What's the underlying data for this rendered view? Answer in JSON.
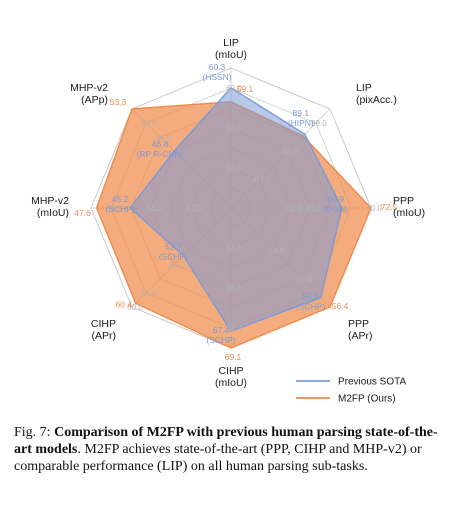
{
  "chart_data": {
    "type": "radar",
    "axes": [
      {
        "label": [
          "LIP",
          "(mIoU)"
        ],
        "range": [
          50,
          62
        ],
        "ticks": [
          {
            "r": 2,
            "text": "58.0"
          },
          {
            "r": 4,
            "text": "56.0"
          },
          {
            "r": 6,
            "text": "60.0"
          }
        ],
        "prev": {
          "value": 60.3,
          "text": [
            "60.3",
            "(HSSN)"
          ]
        },
        "ours": {
          "value": 59.1,
          "text": [
            "59.1"
          ]
        }
      },
      {
        "label": [
          "LIP",
          "(pixAcc.)"
        ],
        "range": [
          85,
          90.5
        ],
        "ticks": [
          {
            "r": 2,
            "text": "87.0"
          },
          {
            "r": 4,
            "text": "88.0"
          },
          {
            "r": 6,
            "text": "89.0"
          }
        ],
        "prev": {
          "value": 89.1,
          "text": [
            "89.1",
            "(HIPN)"
          ]
        },
        "ours": {
          "value": 89.0,
          "text": []
        }
      },
      {
        "label": [
          "PPP",
          "(mIoU)"
        ],
        "range": [
          60,
          72.5
        ],
        "ticks": [
          {
            "r": 3,
            "text": "60.0"
          },
          {
            "r": 4,
            "text": "65.0"
          },
          {
            "r": 7,
            "text": "70.0"
          }
        ],
        "prev": {
          "value": 69.9,
          "text": [
            "69.9",
            "(PGN)"
          ]
        },
        "ours": {
          "value": 72.5,
          "text": [
            "72.5"
          ]
        }
      },
      {
        "label": [
          "PPP",
          "(APr)"
        ],
        "range": [
          50,
          56.4
        ],
        "ticks": [
          {
            "r": 3,
            "text": "54.0"
          },
          {
            "r": 5,
            "text": "55.0"
          }
        ],
        "prev": {
          "value": 55.8,
          "text": [
            "55.8",
            "(SCHP)"
          ]
        },
        "ours": {
          "value": 56.4,
          "text": [
            "56.4"
          ]
        }
      },
      {
        "label": [
          "CIHP",
          "(mIoU)"
        ],
        "range": [
          55,
          69.1
        ],
        "ticks": [
          {
            "r": 2,
            "text": "64.0"
          },
          {
            "r": 4,
            "text": "66.0"
          },
          {
            "r": 6,
            "text": "68.0"
          }
        ],
        "prev": {
          "value": 67.4,
          "text": [
            "67.4",
            "(SCHP)"
          ]
        },
        "ours": {
          "value": 69.1,
          "text": [
            "69.1"
          ]
        }
      },
      {
        "label": [
          "CIHP",
          "(APr)"
        ],
        "range": [
          45,
          61
        ],
        "ticks": [
          {
            "r": 4,
            "text": "50.0"
          },
          {
            "r": 6,
            "text": "55.0"
          },
          {
            "r": 7,
            "text": "60.0"
          }
        ],
        "prev": {
          "value": 52.7,
          "text": [
            "52.7",
            "(SCHP)"
          ]
        },
        "ours": {
          "value": 60.4,
          "text": [
            "60.4"
          ]
        }
      },
      {
        "label": [
          "MHP-v2",
          "(mIoU)"
        ],
        "range": [
          38,
          48
        ],
        "ticks": [
          {
            "r": 2,
            "text": "42.0"
          },
          {
            "r": 4,
            "text": "44.0"
          },
          {
            "r": 6,
            "text": "46.0"
          }
        ],
        "prev": {
          "value": 45.2,
          "text": [
            "45.2",
            "(SCHP)"
          ]
        },
        "ours": {
          "value": 47.6,
          "text": [
            "47.6"
          ]
        }
      },
      {
        "label": [
          "MHP-v2",
          "(APp)"
        ],
        "range": [
          38,
          53.3
        ],
        "ticks": [
          {
            "r": 5,
            "text": "44.0"
          },
          {
            "r": 6,
            "text": "50.0"
          }
        ],
        "prev": {
          "value": 46.8,
          "text": [
            "46.8",
            "(RP R-CNN)"
          ]
        },
        "ours": {
          "value": 53.3,
          "text": [
            "53.3"
          ]
        }
      }
    ],
    "series": [
      {
        "name": "Previous SOTA",
        "color": "#7d9bd6"
      },
      {
        "name": "M2FP (Ours)",
        "color": "#f08a4b"
      }
    ],
    "legend": "bottom-right"
  },
  "colors": {
    "prev": "#7d9bd6",
    "ours": "#f08a4b",
    "grid": "#bdbdbd"
  },
  "caption": {
    "prefix": "Fig. 7: ",
    "bold": "Comparison of M2FP with previous human parsing state-of-the-art models",
    "rest": ". M2FP achieves state-of-the-art (PPP, CIHP and MHP-v2) or comparable performance (LIP) on all human parsing sub-tasks."
  }
}
